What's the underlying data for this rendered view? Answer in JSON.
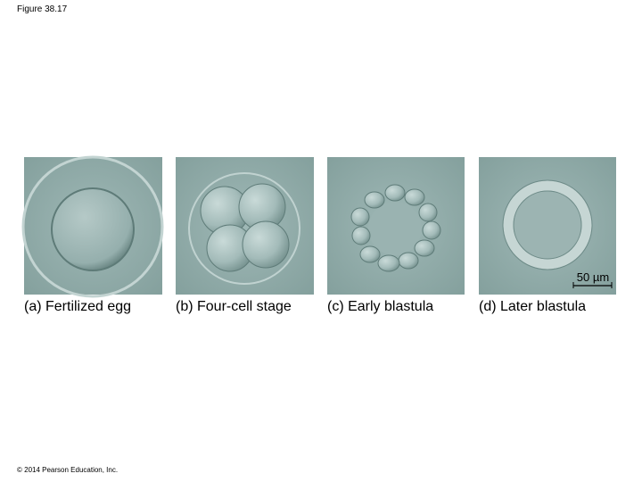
{
  "header": {
    "title": "Figure 38.17"
  },
  "panels": [
    {
      "label": "(a) Fertilized egg"
    },
    {
      "label": "(b) Four-cell stage"
    },
    {
      "label": "(c) Early blastula"
    },
    {
      "label": "(d) Later blastula",
      "scale_bar": "50 µm"
    }
  ],
  "footer": {
    "copyright": "© 2014 Pearson Education, Inc."
  }
}
